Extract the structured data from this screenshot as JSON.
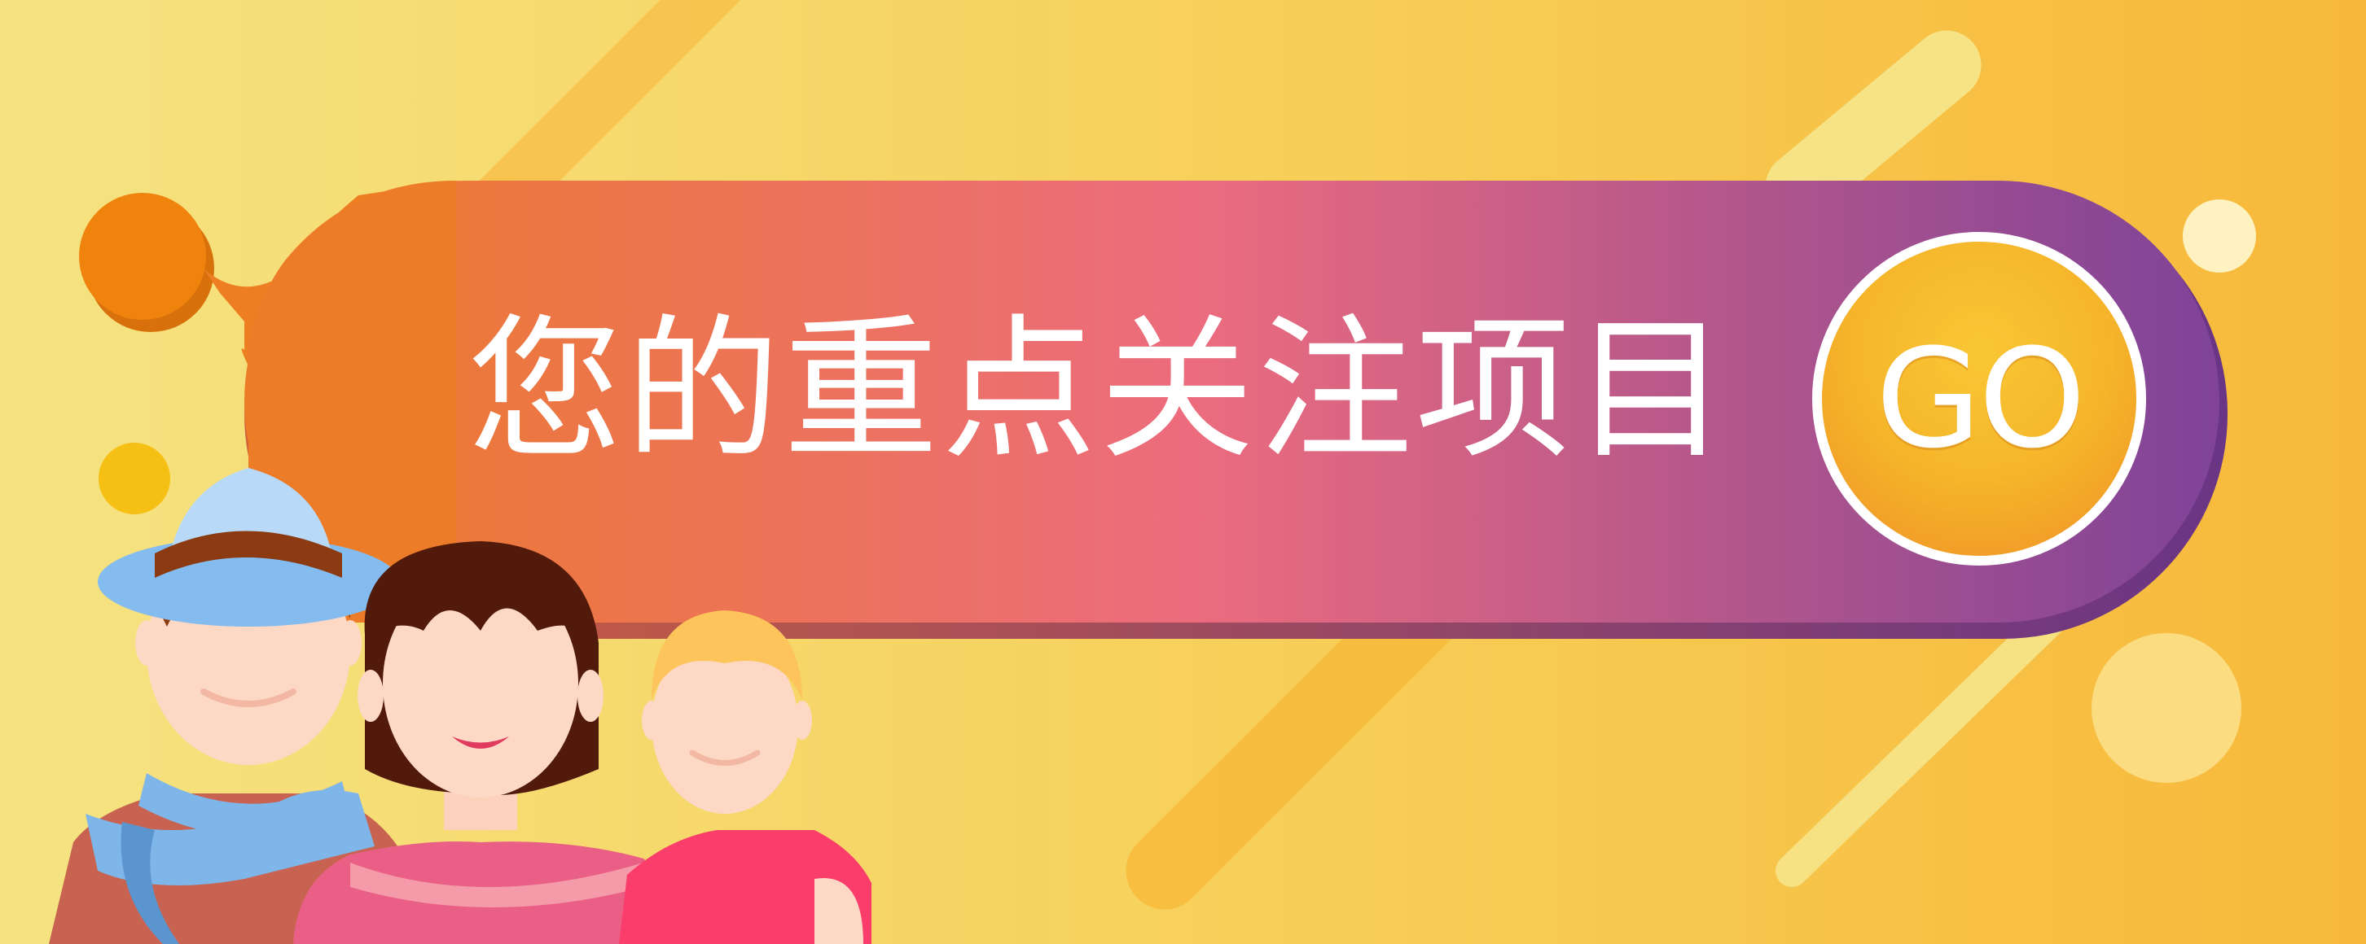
{
  "banner": {
    "headline": "您的重点关注项目",
    "go_button": {
      "label": "GO"
    }
  },
  "colors": {
    "background_light": "#f5e07a",
    "background_dark": "#f7b83a",
    "pill_gradient": [
      "#ec7c2a",
      "#ec6e7a",
      "#8b4593"
    ],
    "go_button": "#f5b52a",
    "text": "#ffffff"
  },
  "illustration": {
    "icon": "three-people-icon",
    "people": [
      "man-with-hat-and-scarf",
      "woman-with-brown-bob",
      "blond-boy"
    ]
  }
}
